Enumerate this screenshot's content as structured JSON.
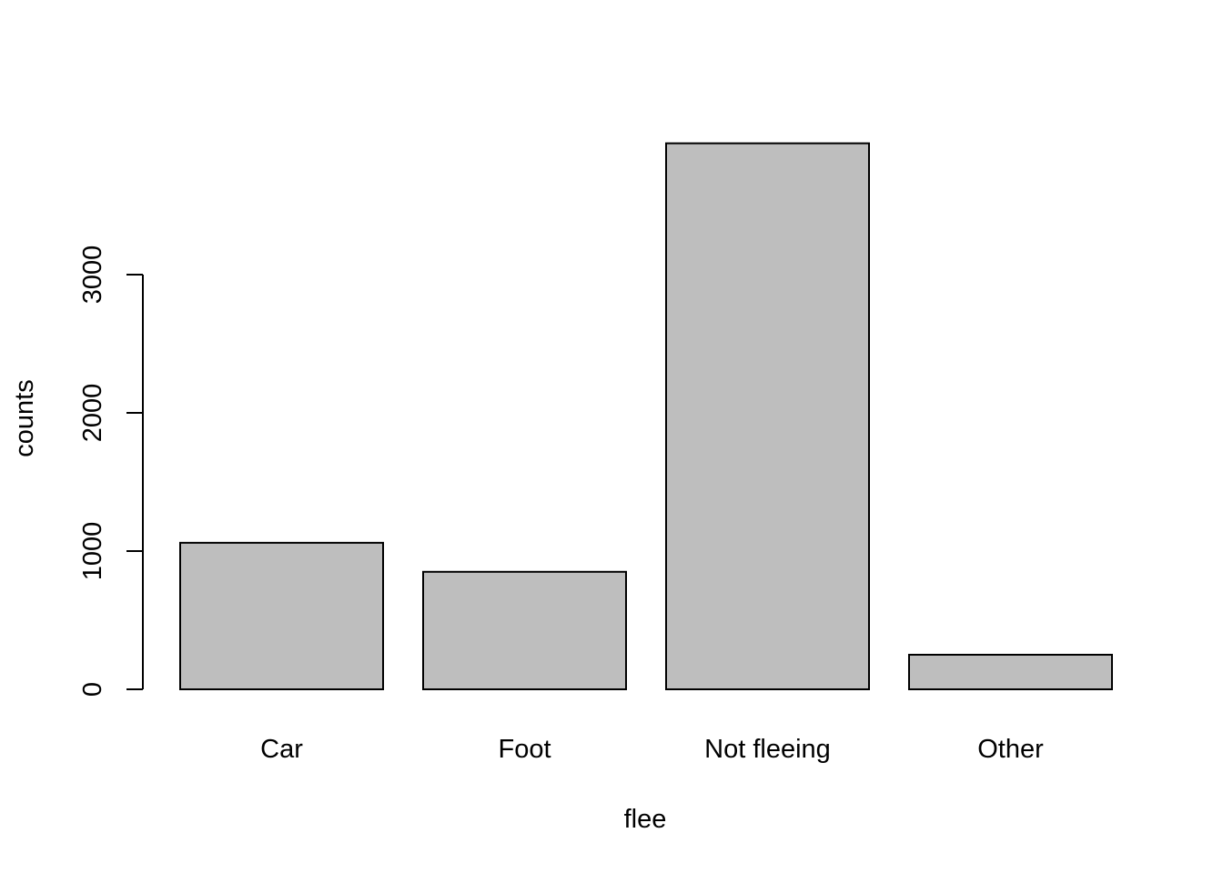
{
  "chart_data": {
    "type": "bar",
    "categories": [
      "Car",
      "Foot",
      "Not fleeing",
      "Other"
    ],
    "values": [
      1060,
      850,
      3950,
      250
    ],
    "xlabel": "flee",
    "ylabel": "counts",
    "yticks": [
      0,
      1000,
      2000,
      3000
    ],
    "ytick_labels": [
      "0",
      "1000",
      "2000",
      "3000"
    ],
    "ylim": [
      0,
      4000
    ],
    "grid": false,
    "legend": "none",
    "colors": {
      "bar_fill": "#bebebe",
      "bar_stroke": "#000000",
      "axis": "#000000"
    }
  }
}
